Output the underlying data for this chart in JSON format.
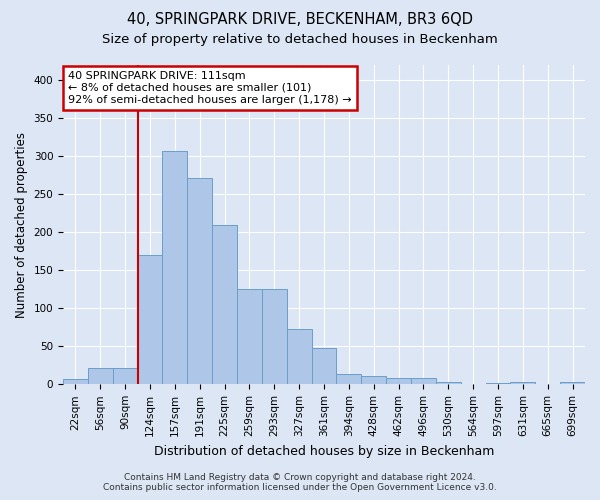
{
  "title": "40, SPRINGPARK DRIVE, BECKENHAM, BR3 6QD",
  "subtitle": "Size of property relative to detached houses in Beckenham",
  "xlabel": "Distribution of detached houses by size in Beckenham",
  "ylabel": "Number of detached properties",
  "bar_labels": [
    "22sqm",
    "56sqm",
    "90sqm",
    "124sqm",
    "157sqm",
    "191sqm",
    "225sqm",
    "259sqm",
    "293sqm",
    "327sqm",
    "361sqm",
    "394sqm",
    "428sqm",
    "462sqm",
    "496sqm",
    "530sqm",
    "564sqm",
    "597sqm",
    "631sqm",
    "665sqm",
    "699sqm"
  ],
  "bar_values": [
    7,
    21,
    21,
    170,
    307,
    272,
    210,
    125,
    125,
    73,
    48,
    14,
    11,
    8,
    8,
    3,
    0,
    2,
    3,
    0,
    3
  ],
  "bar_color": "#aec6e8",
  "bar_edge_color": "#6a9fc8",
  "vline_x": 2.5,
  "vline_color": "#cc0000",
  "annotation_text": "40 SPRINGPARK DRIVE: 111sqm\n← 8% of detached houses are smaller (101)\n92% of semi-detached houses are larger (1,178) →",
  "annotation_box_color": "#ffffff",
  "annotation_box_edge_color": "#cc0000",
  "ylim": [
    0,
    420
  ],
  "yticks": [
    0,
    50,
    100,
    150,
    200,
    250,
    300,
    350,
    400
  ],
  "bg_color": "#dce6f5",
  "plot_bg_color": "#dce6f5",
  "footer_line1": "Contains HM Land Registry data © Crown copyright and database right 2024.",
  "footer_line2": "Contains public sector information licensed under the Open Government Licence v3.0.",
  "title_fontsize": 10.5,
  "subtitle_fontsize": 9.5,
  "xlabel_fontsize": 9,
  "ylabel_fontsize": 8.5,
  "tick_fontsize": 7.5,
  "footer_fontsize": 6.5,
  "ann_fontsize": 8
}
